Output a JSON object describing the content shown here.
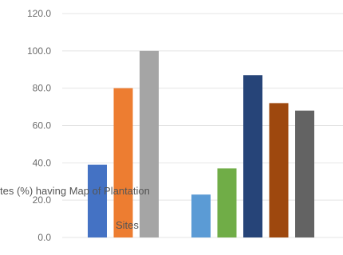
{
  "chart_data": {
    "type": "bar",
    "ylim": [
      0,
      120
    ],
    "ytick_labels": [
      "0.0",
      "20.0",
      "40.0",
      "60.0",
      "80.0",
      "100.0",
      "120.0"
    ],
    "grid": true,
    "groups": [
      {
        "bars": [
          {
            "value": 39.0,
            "color": "#4472c4"
          },
          {
            "value": 80.0,
            "color": "#ed7d31"
          },
          {
            "value": 100.0,
            "color": "#a5a5a5"
          }
        ]
      },
      {
        "bars": [
          {
            "value": 23.0,
            "color": "#5b9bd5"
          },
          {
            "value": 37.0,
            "color": "#70ad47"
          },
          {
            "value": 87.0,
            "color": "#264478"
          },
          {
            "value": 72.0,
            "color": "#9e480e"
          },
          {
            "value": 68.0,
            "color": "#636363"
          }
        ]
      }
    ],
    "overlay_label": {
      "line1": "tes (%) having Map of Plantation",
      "line2": "Sites"
    }
  }
}
